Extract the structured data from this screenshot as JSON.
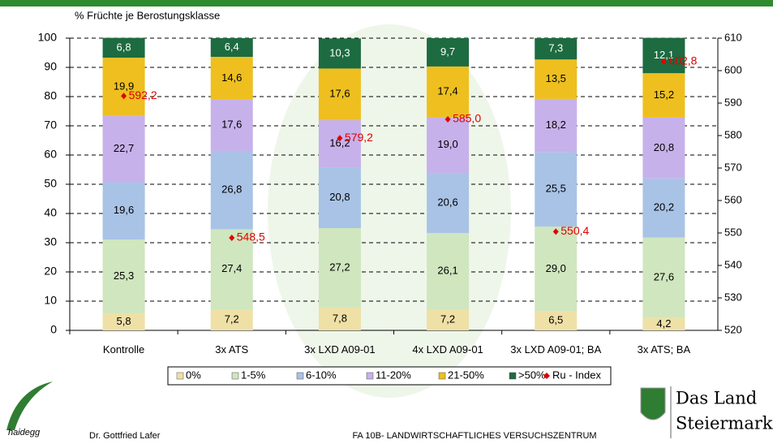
{
  "chart_data": {
    "type": "bar",
    "stacked": true,
    "title": "% Früchte je Berostungsklasse",
    "categories": [
      "Kontrolle",
      "3x ATS",
      "3x LXD A09-01",
      "4x LXD A09-01",
      "3x LXD A09-01; BA",
      "3x ATS; BA"
    ],
    "series": [
      {
        "name": "0%",
        "color": "#efe0a6",
        "values": [
          5.8,
          7.2,
          7.8,
          7.2,
          6.5,
          4.2
        ],
        "value_labels": [
          "5,8",
          "7,2",
          "7,8",
          "7,2",
          "6,5",
          "4,2"
        ]
      },
      {
        "name": "1-5%",
        "color": "#cfe6bf",
        "values": [
          25.3,
          27.4,
          27.2,
          26.1,
          29.0,
          27.6
        ],
        "value_labels": [
          "25,3",
          "27,4",
          "27,2",
          "26,1",
          "29,0",
          "27,6"
        ]
      },
      {
        "name": "6-10%",
        "color": "#a9c3e6",
        "values": [
          19.6,
          26.8,
          20.8,
          20.6,
          25.5,
          20.2
        ],
        "value_labels": [
          "19,6",
          "26,8",
          "20,8",
          "20,6",
          "25,5",
          "20,2"
        ]
      },
      {
        "name": "11-20%",
        "color": "#c7b1ea",
        "values": [
          22.7,
          17.6,
          16.2,
          19.0,
          18.2,
          20.8
        ],
        "value_labels": [
          "22,7",
          "17,6",
          "16,2",
          "19,0",
          "18,2",
          "20,8"
        ]
      },
      {
        "name": "21-50%",
        "color": "#eebf1e",
        "values": [
          19.9,
          14.6,
          17.6,
          17.4,
          13.5,
          15.2
        ],
        "value_labels": [
          "19,9",
          "14,6",
          "17,6",
          "17,4",
          "13,5",
          "15,2"
        ]
      },
      {
        "name": ">50%",
        "color": "#1d6b40",
        "values": [
          6.8,
          6.4,
          10.3,
          9.7,
          7.3,
          12.1
        ],
        "value_labels": [
          "6,8",
          "6,4",
          "10,3",
          "9,7",
          "7,3",
          "12,1"
        ]
      },
      {
        "name": "Ru - Index",
        "color": "#e00000",
        "axis": "y2",
        "marker": "diamond",
        "values": [
          592.2,
          548.5,
          579.2,
          585.0,
          550.4,
          602.8
        ],
        "value_labels": [
          "592,2",
          "548,5",
          "579,2",
          "585,0",
          "550,4",
          "602,8"
        ]
      }
    ],
    "ylim": [
      0,
      100
    ],
    "yticks": [
      0,
      10,
      20,
      30,
      40,
      50,
      60,
      70,
      80,
      90,
      100
    ],
    "y2lim": [
      520,
      610
    ],
    "y2ticks": [
      520,
      530,
      540,
      550,
      560,
      570,
      580,
      590,
      600,
      610
    ],
    "grid": true,
    "legend": "bottom"
  },
  "footer": {
    "logo": "haidegg",
    "author": "Dr. Gottfried Lafer",
    "institute": "FA 10B- LANDWIRTSCHAFTLICHES VERSUCHSZENTRUM",
    "brand_line1": "Das Land",
    "brand_line2": "Steiermark"
  }
}
